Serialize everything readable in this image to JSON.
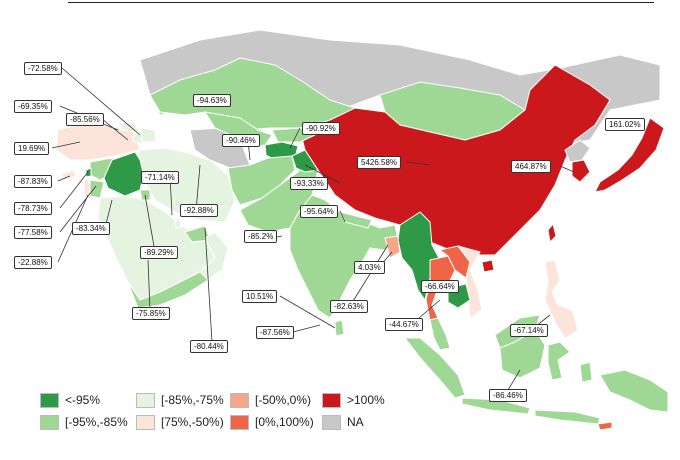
{
  "colors": {
    "lt_-95": "#2e9a48",
    "-95_-85": "#9fd795",
    "-85_-75": "#e5f4e0",
    "75_-50": "#fde4da",
    "-50_0": "#f6a78a",
    "0_100": "#ef6548",
    "gt_100": "#cb181d",
    "na": "#c8c8c8"
  },
  "legend": [
    {
      "key": "lt_-95",
      "label": "<-95%"
    },
    {
      "key": "-95_-85",
      "label": "[-95%,-85%"
    },
    {
      "key": "-85_-75",
      "label": "[-85%,-75%"
    },
    {
      "key": "75_-50",
      "label": "[75%,-50%)"
    },
    {
      "key": "-50_0",
      "label": "[-50%,0%)"
    },
    {
      "key": "0_100",
      "label": "[0%,100%)"
    },
    {
      "key": "gt_100",
      "label": ">100%"
    },
    {
      "key": "na",
      "label": "NA"
    }
  ],
  "labels": [
    {
      "id": "l01",
      "text": "-72.58%"
    },
    {
      "id": "l02",
      "text": "-69.35%"
    },
    {
      "id": "l03",
      "text": "-85.56%"
    },
    {
      "id": "l04",
      "text": "19.69%"
    },
    {
      "id": "l05",
      "text": "-87.83%"
    },
    {
      "id": "l06",
      "text": "-78.73%"
    },
    {
      "id": "l07",
      "text": "-77.58%"
    },
    {
      "id": "l08",
      "text": "-22.88%"
    },
    {
      "id": "l09",
      "text": "-83.34%"
    },
    {
      "id": "l10",
      "text": "-94.63%"
    },
    {
      "id": "l11",
      "text": "-90.46%"
    },
    {
      "id": "l12",
      "text": "-90.92%"
    },
    {
      "id": "l13",
      "text": "-71.14%"
    },
    {
      "id": "l14",
      "text": "-92.88%"
    },
    {
      "id": "l15",
      "text": "-93.33%"
    },
    {
      "id": "l16",
      "text": "-95.64%"
    },
    {
      "id": "l17",
      "text": "5426.58%"
    },
    {
      "id": "l18",
      "text": "161.02%"
    },
    {
      "id": "l19",
      "text": "464.87%"
    },
    {
      "id": "l20",
      "text": "-89.29%"
    },
    {
      "id": "l21",
      "text": "-85.2%"
    },
    {
      "id": "l22",
      "text": "4.03%"
    },
    {
      "id": "l23",
      "text": "-66.64%"
    },
    {
      "id": "l24",
      "text": "-75.85%"
    },
    {
      "id": "l25",
      "text": "10.51%"
    },
    {
      "id": "l26",
      "text": "-82.63%"
    },
    {
      "id": "l27",
      "text": "-44.67%"
    },
    {
      "id": "l28",
      "text": "-67.14%"
    },
    {
      "id": "l29",
      "text": "-87.56%"
    },
    {
      "id": "l30",
      "text": "-80.44%"
    },
    {
      "id": "l31",
      "text": "-86.46%"
    }
  ]
}
